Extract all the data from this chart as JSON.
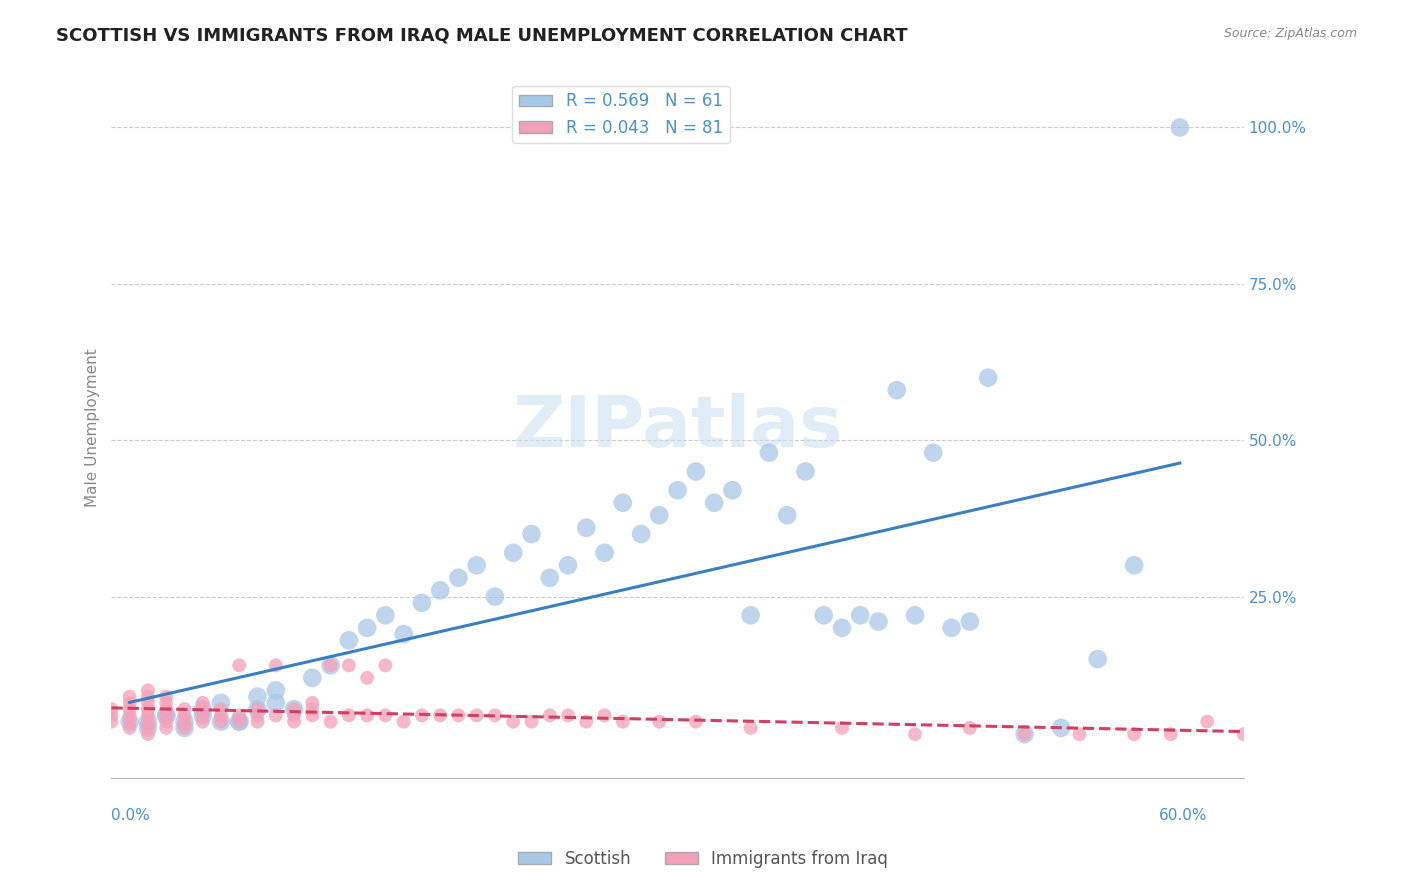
{
  "title": "SCOTTISH VS IMMIGRANTS FROM IRAQ MALE UNEMPLOYMENT CORRELATION CHART",
  "source": "Source: ZipAtlas.com",
  "ylabel": "Male Unemployment",
  "xlim": [
    0.0,
    0.62
  ],
  "ylim": [
    -0.04,
    1.08
  ],
  "legend_entries": [
    {
      "label": "Scottish",
      "color": "#a8c8e8",
      "R": 0.569,
      "N": 61
    },
    {
      "label": "Immigrants from Iraq",
      "color": "#f4a0b8",
      "R": 0.043,
      "N": 81
    }
  ],
  "blue_scatter_x": [
    0.01,
    0.02,
    0.03,
    0.04,
    0.05,
    0.06,
    0.07,
    0.08,
    0.09,
    0.1,
    0.11,
    0.12,
    0.13,
    0.14,
    0.15,
    0.16,
    0.17,
    0.18,
    0.19,
    0.2,
    0.21,
    0.22,
    0.23,
    0.24,
    0.25,
    0.26,
    0.27,
    0.28,
    0.29,
    0.3,
    0.31,
    0.32,
    0.33,
    0.34,
    0.35,
    0.36,
    0.37,
    0.38,
    0.39,
    0.4,
    0.41,
    0.42,
    0.43,
    0.44,
    0.45,
    0.46,
    0.47,
    0.48,
    0.5,
    0.52,
    0.54,
    0.56,
    0.02,
    0.03,
    0.04,
    0.05,
    0.06,
    0.07,
    0.08,
    0.09,
    0.585
  ],
  "blue_scatter_y": [
    0.05,
    0.04,
    0.06,
    0.05,
    0.07,
    0.08,
    0.05,
    0.09,
    0.1,
    0.07,
    0.12,
    0.14,
    0.18,
    0.2,
    0.22,
    0.19,
    0.24,
    0.26,
    0.28,
    0.3,
    0.25,
    0.32,
    0.35,
    0.28,
    0.3,
    0.36,
    0.32,
    0.4,
    0.35,
    0.38,
    0.42,
    0.45,
    0.4,
    0.42,
    0.22,
    0.48,
    0.38,
    0.45,
    0.22,
    0.2,
    0.22,
    0.21,
    0.58,
    0.22,
    0.48,
    0.2,
    0.21,
    0.6,
    0.03,
    0.04,
    0.15,
    0.3,
    0.05,
    0.06,
    0.04,
    0.06,
    0.05,
    0.05,
    0.07,
    0.08,
    1.0
  ],
  "pink_scatter_x": [
    0.0,
    0.0,
    0.0,
    0.01,
    0.01,
    0.01,
    0.01,
    0.01,
    0.01,
    0.02,
    0.02,
    0.02,
    0.02,
    0.02,
    0.02,
    0.02,
    0.02,
    0.03,
    0.03,
    0.03,
    0.03,
    0.03,
    0.03,
    0.04,
    0.04,
    0.04,
    0.04,
    0.05,
    0.05,
    0.05,
    0.05,
    0.06,
    0.06,
    0.06,
    0.07,
    0.07,
    0.07,
    0.08,
    0.08,
    0.08,
    0.09,
    0.09,
    0.1,
    0.1,
    0.1,
    0.11,
    0.11,
    0.11,
    0.12,
    0.12,
    0.13,
    0.13,
    0.14,
    0.14,
    0.15,
    0.15,
    0.16,
    0.17,
    0.18,
    0.19,
    0.2,
    0.21,
    0.22,
    0.23,
    0.24,
    0.25,
    0.26,
    0.27,
    0.28,
    0.3,
    0.32,
    0.35,
    0.4,
    0.44,
    0.47,
    0.5,
    0.53,
    0.56,
    0.58,
    0.6,
    0.62
  ],
  "pink_scatter_y": [
    0.05,
    0.06,
    0.07,
    0.04,
    0.05,
    0.06,
    0.07,
    0.08,
    0.09,
    0.03,
    0.04,
    0.05,
    0.06,
    0.07,
    0.08,
    0.09,
    0.1,
    0.04,
    0.05,
    0.06,
    0.07,
    0.08,
    0.09,
    0.04,
    0.05,
    0.06,
    0.07,
    0.05,
    0.06,
    0.07,
    0.08,
    0.05,
    0.06,
    0.07,
    0.05,
    0.06,
    0.14,
    0.05,
    0.06,
    0.07,
    0.06,
    0.14,
    0.05,
    0.06,
    0.07,
    0.06,
    0.07,
    0.08,
    0.05,
    0.14,
    0.06,
    0.14,
    0.06,
    0.12,
    0.06,
    0.14,
    0.05,
    0.06,
    0.06,
    0.06,
    0.06,
    0.06,
    0.05,
    0.05,
    0.06,
    0.06,
    0.05,
    0.06,
    0.05,
    0.05,
    0.05,
    0.04,
    0.04,
    0.03,
    0.04,
    0.03,
    0.03,
    0.03,
    0.03,
    0.05,
    0.03
  ],
  "blue_line_color": "#3a7fc1",
  "pink_line_color": "#d04060",
  "scatter_blue_color": "#a8c8e8",
  "scatter_pink_color": "#f4a0b8",
  "title_color": "#222222",
  "axis_label_color": "#4a90d0",
  "grid_color": "#cccccc",
  "background_color": "#ffffff",
  "watermark_text": "ZIPatlas",
  "title_fontsize": 13,
  "label_fontsize": 11,
  "tick_fontsize": 11
}
